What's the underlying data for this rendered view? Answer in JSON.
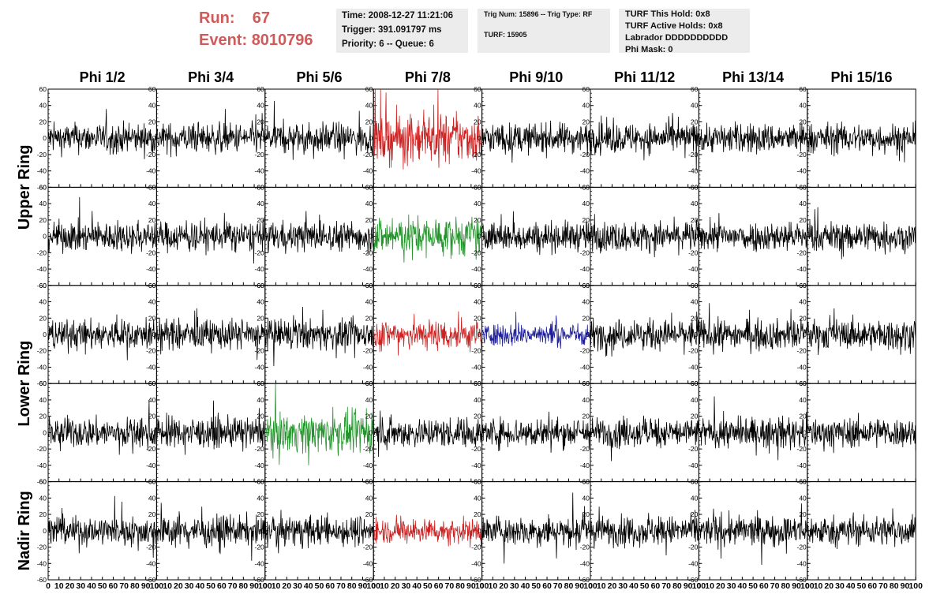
{
  "header": {
    "run_label": "Run:",
    "run_value": "67",
    "event_label": "Event:",
    "event_value": "8010796",
    "time_text": "Time: 2008-12-27 11:21:06",
    "trigger_text": "Trigger: 391.091797 ms",
    "priority_text": "Priority: 6 -- Queue: 6",
    "trig_num_text": "Trig Num: 15896 -- Trig Type: RF",
    "turf_text": "TURF: 15905",
    "turf_this_hold": "TURF This Hold: 0x8",
    "turf_active_holds": "TURF Active Holds: 0x8",
    "labrador": "Labrador DDDDDDDDDD",
    "phi_mask": "Phi Mask: 0"
  },
  "chart_data": {
    "type": "line",
    "columns": [
      "Phi 1/2",
      "Phi 3/4",
      "Phi 5/6",
      "Phi 7/8",
      "Phi 9/10",
      "Phi 11/12",
      "Phi 13/14",
      "Phi 15/16"
    ],
    "row_labels": [
      {
        "label": "Upper Ring",
        "rows": [
          0,
          1
        ]
      },
      {
        "label": "Lower Ring",
        "rows": [
          2,
          3
        ]
      },
      {
        "label": "Nadir Ring",
        "rows": [
          4
        ]
      }
    ],
    "rows": 5,
    "ylim": [
      -60,
      60
    ],
    "y_ticks": [
      -60,
      -40,
      -20,
      0,
      20,
      40,
      60
    ],
    "xlim": [
      0,
      100
    ],
    "x_ticks": [
      0,
      10,
      20,
      30,
      40,
      50,
      60,
      70,
      80,
      90,
      100
    ],
    "samples_per_trace": 260,
    "line_colors": {
      "default": "#000000",
      "red": "#cc2222",
      "green": "#22922a",
      "blue": "#1f1f9c"
    },
    "highlighted_panels": [
      {
        "row": 0,
        "col": 3,
        "color": "red",
        "amplitude": 28
      },
      {
        "row": 1,
        "col": 3,
        "color": "green",
        "amplitude": 22
      },
      {
        "row": 2,
        "col": 3,
        "color": "red",
        "amplitude": 18
      },
      {
        "row": 2,
        "col": 4,
        "color": "blue",
        "amplitude": 13
      },
      {
        "row": 3,
        "col": 2,
        "color": "green",
        "amplitude": 22
      },
      {
        "row": 4,
        "col": 3,
        "color": "red",
        "amplitude": 14
      }
    ],
    "default_amplitude": 17,
    "grid": false
  }
}
